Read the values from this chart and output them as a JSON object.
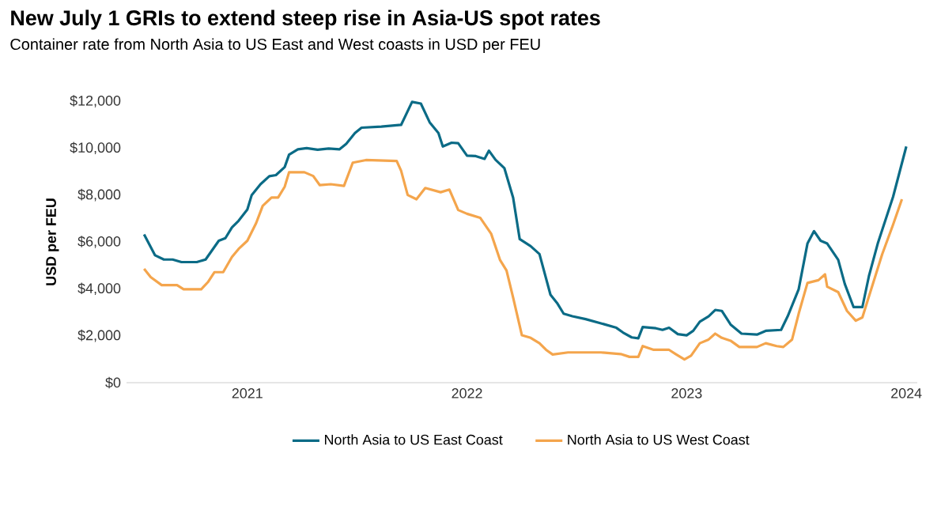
{
  "chart_data": {
    "type": "line",
    "title": "New July 1 GRIs to extend steep rise in Asia-US spot rates",
    "subtitle": "Container rate from North Asia to US East and West coasts in USD per FEU",
    "ylabel": "USD per FEU",
    "xlim": [
      2020.45,
      2024.05
    ],
    "xticks": [
      2021,
      2022,
      2023,
      2024
    ],
    "ylim": [
      0,
      12000
    ],
    "yticks": [
      {
        "value": 0,
        "label": "$0"
      },
      {
        "value": 2000,
        "label": "$2,000"
      },
      {
        "value": 4000,
        "label": "$4,000"
      },
      {
        "value": 6000,
        "label": "$6,000"
      },
      {
        "value": 8000,
        "label": "$8,000"
      },
      {
        "value": 10000,
        "label": "$10,000"
      },
      {
        "value": 12000,
        "label": "$12,000"
      }
    ],
    "grid": false,
    "legend": "bottom",
    "marker": "none",
    "line_style": "solid",
    "series": [
      {
        "name": "North Asia to US East Coast",
        "color": "#0b6b86",
        "x": [
          2020.53,
          2020.58,
          2020.62,
          2020.66,
          2020.7,
          2020.77,
          2020.81,
          2020.87,
          2020.9,
          2020.93,
          2020.96,
          2021.0,
          2021.02,
          2021.06,
          2021.1,
          2021.13,
          2021.17,
          2021.19,
          2021.23,
          2021.27,
          2021.32,
          2021.37,
          2021.42,
          2021.45,
          2021.49,
          2021.52,
          2021.61,
          2021.7,
          2021.75,
          2021.79,
          2021.83,
          2021.87,
          2021.89,
          2021.93,
          2021.96,
          2022.0,
          2022.04,
          2022.08,
          2022.1,
          2022.13,
          2022.17,
          2022.21,
          2022.24,
          2022.29,
          2022.33,
          2022.38,
          2022.41,
          2022.44,
          2022.48,
          2022.54,
          2022.61,
          2022.68,
          2022.71,
          2022.75,
          2022.78,
          2022.8,
          2022.86,
          2022.89,
          2022.92,
          2022.96,
          2023.0,
          2023.03,
          2023.06,
          2023.1,
          2023.13,
          2023.16,
          2023.2,
          2023.25,
          2023.32,
          2023.36,
          2023.43,
          2023.46,
          2023.51,
          2023.55,
          2023.58,
          2023.61,
          2023.64,
          2023.69,
          2023.72,
          2023.76,
          2023.8,
          2023.83,
          2023.87,
          2023.94,
          2024.0
        ],
        "values": [
          6320,
          5430,
          5250,
          5250,
          5140,
          5140,
          5250,
          6050,
          6160,
          6620,
          6900,
          7380,
          8000,
          8460,
          8800,
          8850,
          9190,
          9720,
          9950,
          10000,
          9930,
          9980,
          9950,
          10180,
          10640,
          10870,
          10920,
          10990,
          11970,
          11900,
          11100,
          10640,
          10070,
          10230,
          10210,
          9680,
          9660,
          9540,
          9890,
          9500,
          9150,
          7890,
          6120,
          5820,
          5480,
          3750,
          3400,
          2940,
          2830,
          2710,
          2530,
          2340,
          2140,
          1930,
          1890,
          2370,
          2320,
          2250,
          2340,
          2070,
          2020,
          2210,
          2600,
          2830,
          3100,
          3060,
          2480,
          2090,
          2050,
          2210,
          2250,
          2830,
          3980,
          5930,
          6460,
          6050,
          5930,
          5240,
          4210,
          3220,
          3220,
          4550,
          5930,
          7930,
          10070
        ]
      },
      {
        "name": "North Asia to US West Coast",
        "color": "#f4a54c",
        "x": [
          2020.53,
          2020.56,
          2020.61,
          2020.68,
          2020.71,
          2020.79,
          2020.82,
          2020.85,
          2020.89,
          2020.93,
          2020.96,
          2021.0,
          2021.04,
          2021.07,
          2021.11,
          2021.14,
          2021.17,
          2021.19,
          2021.26,
          2021.3,
          2021.33,
          2021.38,
          2021.44,
          2021.48,
          2021.54,
          2021.68,
          2021.7,
          2021.73,
          2021.77,
          2021.81,
          2021.88,
          2021.92,
          2021.96,
          2022.0,
          2022.06,
          2022.11,
          2022.15,
          2022.18,
          2022.21,
          2022.25,
          2022.29,
          2022.33,
          2022.36,
          2022.39,
          2022.46,
          2022.61,
          2022.7,
          2022.74,
          2022.78,
          2022.8,
          2022.85,
          2022.92,
          2022.95,
          2022.99,
          2023.02,
          2023.06,
          2023.1,
          2023.13,
          2023.16,
          2023.2,
          2023.24,
          2023.32,
          2023.36,
          2023.41,
          2023.44,
          2023.48,
          2023.51,
          2023.55,
          2023.6,
          2023.63,
          2023.64,
          2023.69,
          2023.73,
          2023.77,
          2023.8,
          2023.84,
          2023.89,
          2023.94,
          2023.98
        ],
        "values": [
          4850,
          4500,
          4160,
          4160,
          3980,
          3980,
          4280,
          4710,
          4710,
          5360,
          5700,
          6050,
          6800,
          7540,
          7890,
          7890,
          8350,
          8970,
          8970,
          8810,
          8420,
          8460,
          8390,
          9380,
          9490,
          9450,
          9040,
          8000,
          7820,
          8300,
          8120,
          8230,
          7360,
          7200,
          7030,
          6350,
          5240,
          4780,
          3630,
          2020,
          1910,
          1680,
          1400,
          1200,
          1290,
          1290,
          1220,
          1100,
          1100,
          1560,
          1400,
          1400,
          1220,
          990,
          1150,
          1680,
          1840,
          2090,
          1910,
          1790,
          1520,
          1520,
          1680,
          1560,
          1520,
          1840,
          2940,
          4250,
          4370,
          4620,
          4090,
          3860,
          3060,
          2640,
          2780,
          3980,
          5470,
          6740,
          7820
        ]
      }
    ]
  }
}
